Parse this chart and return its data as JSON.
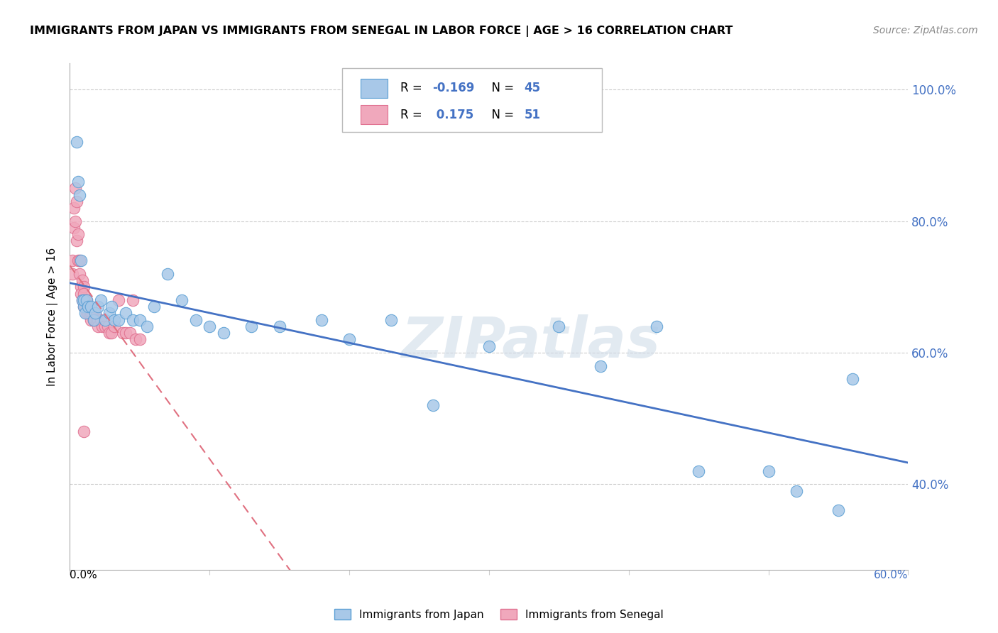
{
  "title": "IMMIGRANTS FROM JAPAN VS IMMIGRANTS FROM SENEGAL IN LABOR FORCE | AGE > 16 CORRELATION CHART",
  "source": "Source: ZipAtlas.com",
  "ylabel": "In Labor Force | Age > 16",
  "ylabel_right_ticks": [
    "40.0%",
    "60.0%",
    "80.0%",
    "100.0%"
  ],
  "ylabel_right_values": [
    0.4,
    0.6,
    0.8,
    1.0
  ],
  "xlim": [
    0.0,
    0.6
  ],
  "ylim": [
    0.27,
    1.04
  ],
  "japan_color": "#a8c8e8",
  "senegal_color": "#f0a8bc",
  "japan_edge_color": "#5a9fd4",
  "senegal_edge_color": "#e07090",
  "japan_line_color": "#4472c4",
  "senegal_line_color": "#e07080",
  "watermark": "ZIPatlas",
  "japan_x": [
    0.005,
    0.006,
    0.007,
    0.008,
    0.009,
    0.01,
    0.01,
    0.011,
    0.012,
    0.013,
    0.015,
    0.017,
    0.018,
    0.02,
    0.022,
    0.025,
    0.028,
    0.03,
    0.032,
    0.035,
    0.04,
    0.045,
    0.05,
    0.055,
    0.06,
    0.07,
    0.08,
    0.09,
    0.1,
    0.11,
    0.13,
    0.15,
    0.18,
    0.2,
    0.23,
    0.26,
    0.3,
    0.35,
    0.38,
    0.42,
    0.45,
    0.5,
    0.52,
    0.55,
    0.56
  ],
  "japan_y": [
    0.92,
    0.86,
    0.84,
    0.74,
    0.68,
    0.67,
    0.68,
    0.66,
    0.68,
    0.67,
    0.67,
    0.65,
    0.66,
    0.67,
    0.68,
    0.65,
    0.66,
    0.67,
    0.65,
    0.65,
    0.66,
    0.65,
    0.65,
    0.64,
    0.67,
    0.72,
    0.68,
    0.65,
    0.64,
    0.63,
    0.64,
    0.64,
    0.65,
    0.62,
    0.65,
    0.52,
    0.61,
    0.64,
    0.58,
    0.64,
    0.42,
    0.42,
    0.39,
    0.36,
    0.56
  ],
  "senegal_x": [
    0.002,
    0.002,
    0.003,
    0.003,
    0.004,
    0.004,
    0.005,
    0.005,
    0.006,
    0.006,
    0.007,
    0.007,
    0.008,
    0.008,
    0.009,
    0.009,
    0.01,
    0.01,
    0.01,
    0.011,
    0.011,
    0.012,
    0.012,
    0.013,
    0.013,
    0.014,
    0.015,
    0.015,
    0.016,
    0.017,
    0.017,
    0.018,
    0.018,
    0.019,
    0.02,
    0.02,
    0.022,
    0.023,
    0.025,
    0.027,
    0.028,
    0.03,
    0.032,
    0.035,
    0.038,
    0.04,
    0.043,
    0.045,
    0.047,
    0.05,
    0.01
  ],
  "senegal_y": [
    0.74,
    0.72,
    0.82,
    0.79,
    0.85,
    0.8,
    0.83,
    0.77,
    0.78,
    0.74,
    0.74,
    0.72,
    0.7,
    0.69,
    0.71,
    0.68,
    0.7,
    0.69,
    0.67,
    0.68,
    0.67,
    0.68,
    0.66,
    0.67,
    0.66,
    0.66,
    0.66,
    0.65,
    0.66,
    0.65,
    0.65,
    0.66,
    0.65,
    0.65,
    0.65,
    0.64,
    0.65,
    0.64,
    0.64,
    0.64,
    0.63,
    0.63,
    0.64,
    0.68,
    0.63,
    0.63,
    0.63,
    0.68,
    0.62,
    0.62,
    0.48
  ]
}
